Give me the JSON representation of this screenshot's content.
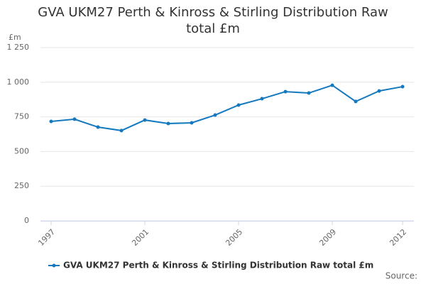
{
  "chart_data": {
    "type": "line",
    "title": "GVA UKM27 Perth & Kinross & Stirling Distribution Raw total £m",
    "y_label": "£m",
    "source": "Source:",
    "x": [
      1997,
      1998,
      1999,
      2000,
      2001,
      2002,
      2003,
      2004,
      2005,
      2006,
      2007,
      2008,
      2009,
      2010,
      2011,
      2012
    ],
    "series": [
      {
        "name": "GVA UKM27 Perth & Kinross & Stirling Distribution Raw total £m",
        "color": "#1479bf",
        "values": [
          717,
          733,
          676,
          651,
          727,
          702,
          707,
          763,
          835,
          881,
          932,
          922,
          978,
          861,
          937,
          968
        ]
      }
    ],
    "xlim": [
      1997,
      2012
    ],
    "xticks": [
      1997,
      2001,
      2005,
      2009,
      2012
    ],
    "ylim": [
      0,
      1250
    ],
    "yticks": [
      0,
      250,
      500,
      750,
      {
        "value": 1000,
        "label": "1 000"
      },
      {
        "value": 1250,
        "label": "1 250"
      }
    ],
    "grid": true,
    "legend": "bottom"
  }
}
